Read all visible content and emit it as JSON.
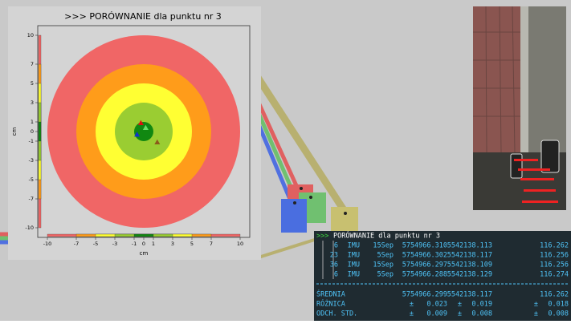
{
  "chart_data": {
    "type": "target",
    "title": ">>> PORÓWNANIE dla punktu nr 3",
    "x_label": "cm",
    "y_label": "cm",
    "xlim": [
      -11,
      11
    ],
    "ylim": [
      -11,
      11
    ],
    "xticks": [
      -10,
      -7,
      -5,
      -3,
      -1,
      0,
      1,
      3,
      5,
      7,
      10
    ],
    "yticks": [
      -10,
      -7,
      -5,
      -3,
      -1,
      0,
      1,
      3,
      5,
      7,
      10
    ],
    "rings": [
      {
        "radius": 10,
        "color": "#f06666"
      },
      {
        "radius": 7,
        "color": "#ff9c1a"
      },
      {
        "radius": 5,
        "color": "#ffff33"
      },
      {
        "radius": 3,
        "color": "#9acd32"
      },
      {
        "radius": 1,
        "color": "#118811"
      }
    ],
    "points": [
      {
        "x": -0.3,
        "y": 0.9,
        "color": "#dd1111"
      },
      {
        "x": 0.2,
        "y": 0.4,
        "color": "#66dd66"
      },
      {
        "x": -0.7,
        "y": -0.3,
        "color": "#1133cc"
      },
      {
        "x": 1.4,
        "y": -1.1,
        "color": "#8b5a1a"
      }
    ]
  },
  "terminal": {
    "prompt": ">>>",
    "title": "PORÓWNANIE dla punktu nr 3",
    "rows": [
      [
        "6",
        "IMU",
        "15Sep",
        "5754966.310",
        "5542138.113",
        "116.262"
      ],
      [
        "23",
        "IMU",
        "5Sep",
        "5754966.302",
        "5542138.117",
        "116.256"
      ],
      [
        "36",
        "IMU",
        "15Sep",
        "5754966.297",
        "5542138.109",
        "116.256"
      ],
      [
        "6",
        "IMU",
        "5Sep",
        "5754966.288",
        "5542138.129",
        "116.274"
      ]
    ],
    "summary": [
      [
        "ŚREDNIA",
        "5754966.299",
        "5542138.117",
        "116.262"
      ],
      [
        "RÓŻNICA",
        "±",
        "0.023",
        "±",
        "0.019",
        "±",
        "0.018"
      ],
      [
        "ODCH. STD.",
        "±",
        "0.009",
        "±",
        "0.008",
        "±",
        "0.008"
      ]
    ]
  }
}
